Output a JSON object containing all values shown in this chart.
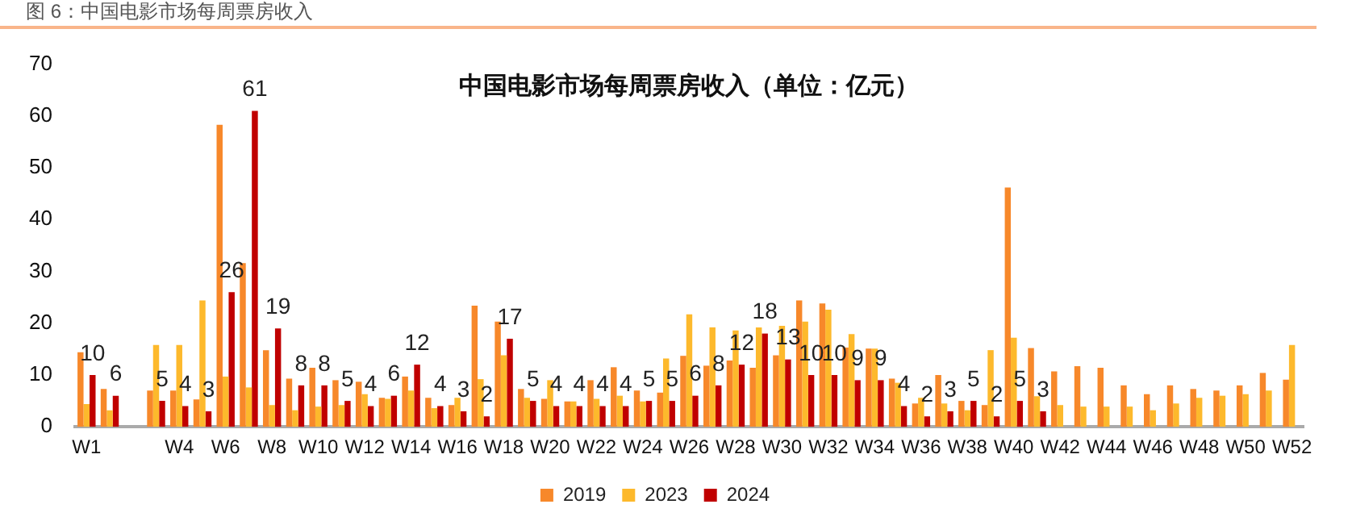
{
  "chart_data": {
    "type": "bar",
    "title": "中国电影市场每周票房收入（单位：亿元）",
    "annotations": [
      "图 6：中国电影市场每周票房收入"
    ],
    "categories": [
      "W1",
      null,
      null,
      null,
      "W4",
      null,
      "W6",
      null,
      "W8",
      null,
      "W10",
      null,
      "W12",
      null,
      "W14",
      null,
      "W16",
      null,
      "W18",
      null,
      "W20",
      null,
      "W22",
      null,
      "W24",
      null,
      "W26",
      null,
      "W28",
      null,
      "W30",
      null,
      "W32",
      null,
      "W34",
      null,
      "W36",
      null,
      "W38",
      null,
      "W40",
      null,
      "W42",
      null,
      "W44",
      null,
      "W46",
      null,
      "W48",
      null,
      "W50",
      null,
      "W52"
    ],
    "series": [
      {
        "name": "2019",
        "color": "#f7882a",
        "values": [
          14.4,
          7.3,
          null,
          7,
          7,
          5.3,
          58.3,
          31.6,
          14.8,
          9.3,
          11.4,
          9,
          8.7,
          5.6,
          9.7,
          5.6,
          4.2,
          23.4,
          20.3,
          7.3,
          5.4,
          4.9,
          9,
          11.5,
          7,
          6.6,
          13.7,
          11.8,
          12.8,
          11.4,
          13.8,
          24.4,
          23.8,
          15.3,
          15.1,
          9.3,
          4.5,
          10,
          5,
          4.2,
          46.2,
          15.2,
          10.7,
          11.7,
          11.4,
          8,
          6.3,
          8,
          7.3,
          7,
          8,
          10.4,
          9.1
        ]
      },
      {
        "name": "2023",
        "color": "#fdb92c",
        "values": [
          4.4,
          3.2,
          null,
          15.8,
          15.8,
          24.4,
          9.7,
          7.6,
          4.2,
          3.2,
          3.9,
          4.2,
          6.3,
          5.4,
          7,
          3.6,
          5.6,
          9.2,
          13.8,
          5.6,
          9,
          4.9,
          5.4,
          6,
          4.9,
          13.2,
          21.7,
          19.2,
          18.6,
          19.2,
          19.5,
          20.3,
          22.6,
          17.9,
          15.1,
          8.5,
          5.6,
          4.5,
          3.2,
          14.8,
          17.2,
          5.9,
          4.2,
          3.9,
          3.9,
          3.9,
          3.2,
          4.5,
          5.6,
          6,
          6.3,
          7,
          15.8
        ]
      },
      {
        "name": "2024",
        "color": "#c00000",
        "values": [
          10,
          6,
          null,
          5,
          4,
          3,
          26,
          61,
          19,
          8,
          8,
          5,
          4,
          6,
          12,
          4,
          3,
          2,
          17,
          5,
          4,
          4,
          4,
          4,
          5,
          5,
          6,
          8,
          12,
          18,
          13,
          10,
          10,
          9,
          9,
          4,
          2,
          3,
          5,
          2,
          5,
          3,
          null,
          null,
          null,
          null,
          null,
          null,
          null,
          null,
          null,
          null,
          null
        ],
        "value_labels": [
          "10",
          "6",
          null,
          "5",
          "4",
          "3",
          "26",
          "61",
          "19",
          "8",
          "8",
          "5",
          "4",
          "6",
          "12",
          "4",
          "3",
          "2",
          "17",
          "5",
          "4",
          "4",
          "4",
          "4",
          "5",
          "5",
          "6",
          "8",
          "12",
          "18",
          "13",
          "10",
          "10",
          "9",
          "9",
          "4",
          "2",
          "3",
          "5",
          "2",
          "5",
          "3",
          null,
          null,
          null,
          null,
          null,
          null,
          null,
          null,
          null,
          null,
          null
        ]
      }
    ],
    "ylim": [
      0,
      70
    ],
    "yticks": [
      0,
      10,
      20,
      30,
      40,
      50,
      60,
      70
    ],
    "grid": false,
    "legend": "bottom"
  }
}
